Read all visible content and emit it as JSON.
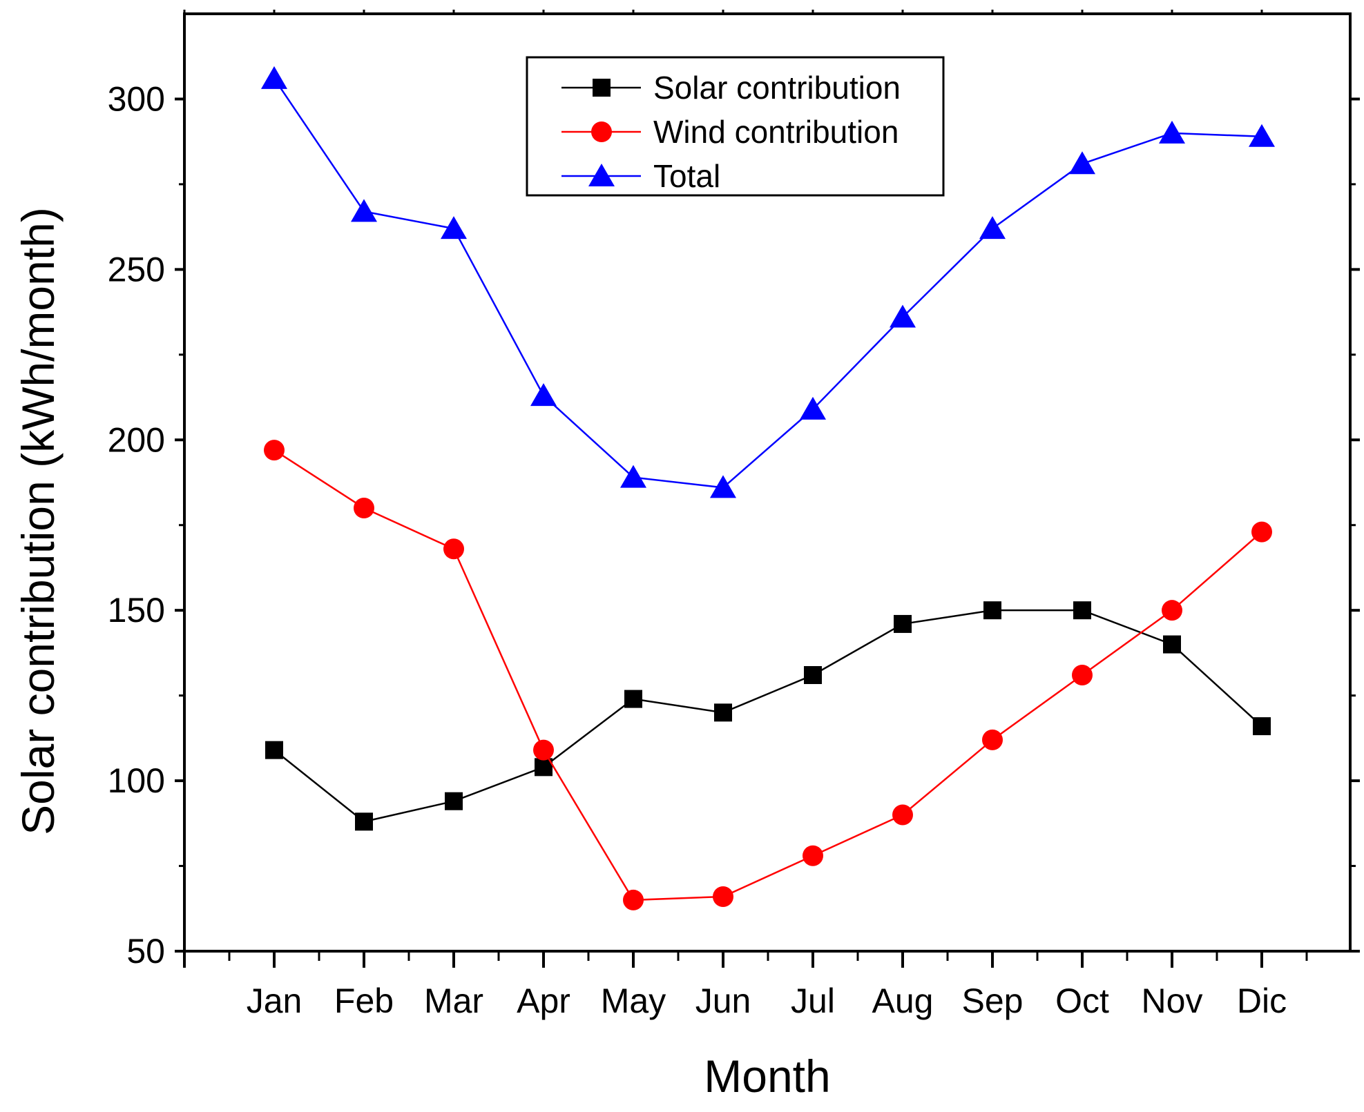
{
  "chart_data": {
    "type": "line",
    "title": "",
    "xlabel": "Month",
    "ylabel": "Solar contribution (kWh/month)",
    "categories": [
      "Jan",
      "Feb",
      "Mar",
      "Apr",
      "May",
      "Jun",
      "Jul",
      "Aug",
      "Sep",
      "Oct",
      "Nov",
      "Dic"
    ],
    "ylim": [
      50,
      325
    ],
    "yticks": [
      50,
      100,
      150,
      200,
      250,
      300
    ],
    "legend_position": "top-center",
    "grid": false,
    "series": [
      {
        "name": "Solar contribution",
        "color": "#000000",
        "marker": "square",
        "values": [
          109,
          88,
          94,
          104,
          124,
          120,
          131,
          146,
          150,
          150,
          140,
          116
        ]
      },
      {
        "name": "Wind contribution",
        "color": "#ff0000",
        "marker": "circle",
        "values": [
          197,
          180,
          168,
          109,
          65,
          66,
          78,
          90,
          112,
          131,
          150,
          173
        ]
      },
      {
        "name": "Total",
        "color": "#0000ff",
        "marker": "triangle",
        "values": [
          306,
          267,
          262,
          213,
          189,
          186,
          209,
          236,
          262,
          281,
          290,
          289
        ]
      }
    ]
  }
}
